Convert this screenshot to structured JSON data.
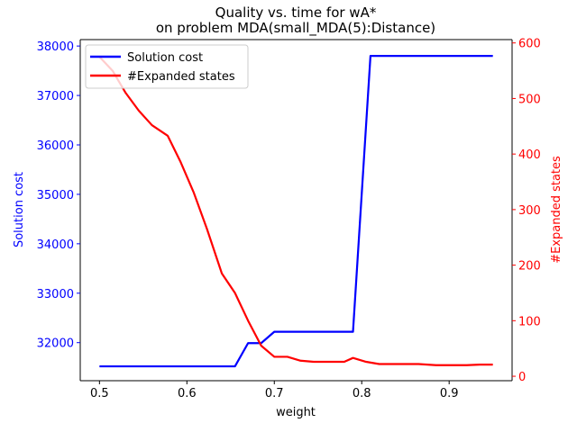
{
  "chart_data": {
    "type": "line",
    "title": "Quality vs. time for wA*",
    "subtitle": "on problem MDA(small_MDA(5):Distance)",
    "xlabel": "weight",
    "ylabel_left": "Solution cost",
    "ylabel_right": "#Expanded states",
    "xlim": [
      0.478,
      0.972
    ],
    "ylim_left": [
      31230,
      38130
    ],
    "ylim_right": [
      -8,
      606
    ],
    "x_ticks": [
      0.5,
      0.6,
      0.7,
      0.8,
      0.9
    ],
    "y_ticks_left": [
      32000,
      33000,
      34000,
      35000,
      36000,
      37000,
      38000
    ],
    "y_ticks_right": [
      0,
      100,
      200,
      300,
      400,
      500,
      600
    ],
    "grid": false,
    "legend_position": "upper-left",
    "left_axis_color": "#0000ff",
    "right_axis_color": "#ff0000",
    "series": [
      {
        "name": "Solution cost",
        "axis": "left",
        "color": "#0000ff",
        "x": [
          0.5,
          0.515,
          0.53,
          0.545,
          0.56,
          0.575,
          0.59,
          0.605,
          0.62,
          0.635,
          0.655,
          0.67,
          0.685,
          0.7,
          0.715,
          0.73,
          0.745,
          0.76,
          0.775,
          0.79,
          0.81,
          0.825,
          0.84,
          0.855,
          0.87,
          0.885,
          0.9,
          0.92,
          0.935,
          0.95
        ],
        "values": [
          31520,
          31520,
          31520,
          31520,
          31520,
          31520,
          31520,
          31520,
          31520,
          31520,
          31520,
          31990,
          31990,
          32220,
          32220,
          32220,
          32220,
          32220,
          32220,
          32220,
          37800,
          37800,
          37800,
          37800,
          37800,
          37800,
          37800,
          37800,
          37800,
          37800
        ]
      },
      {
        "name": "#Expanded states",
        "axis": "right",
        "color": "#ff0000",
        "x": [
          0.5,
          0.515,
          0.53,
          0.545,
          0.56,
          0.578,
          0.593,
          0.608,
          0.623,
          0.64,
          0.655,
          0.67,
          0.685,
          0.7,
          0.715,
          0.73,
          0.745,
          0.76,
          0.78,
          0.79,
          0.805,
          0.82,
          0.835,
          0.85,
          0.865,
          0.885,
          0.9,
          0.92,
          0.935,
          0.95
        ],
        "values": [
          575,
          550,
          510,
          478,
          452,
          433,
          385,
          330,
          265,
          185,
          150,
          100,
          55,
          35,
          35,
          28,
          26,
          26,
          26,
          33,
          26,
          22,
          22,
          22,
          22,
          20,
          20,
          20,
          21,
          21
        ]
      }
    ]
  }
}
